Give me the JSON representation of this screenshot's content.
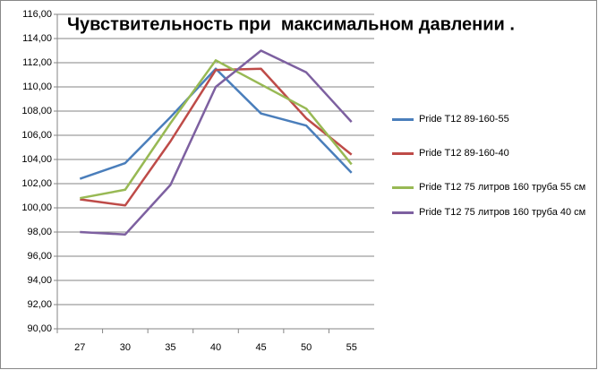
{
  "chart_data": {
    "type": "line",
    "title": "Чувствительность при  максимальном давлении .",
    "categories": [
      "27",
      "30",
      "35",
      "40",
      "45",
      "50",
      "55"
    ],
    "series": [
      {
        "name": "Pride T12 89-160-55",
        "color": "#4a7ebb",
        "values": [
          102.4,
          103.7,
          107.5,
          111.5,
          107.8,
          106.8,
          102.9
        ]
      },
      {
        "name": "Pride T12 89-160-40",
        "color": "#be4b48",
        "values": [
          100.7,
          100.2,
          105.5,
          111.4,
          111.5,
          107.4,
          104.4
        ]
      },
      {
        "name": "Pride T12 75 литров 160 труба 55 см",
        "color": "#98b954",
        "values": [
          100.8,
          101.5,
          107.0,
          112.2,
          110.2,
          108.2,
          103.6
        ]
      },
      {
        "name": "Pride T12 75 литров 160 труба 40 см",
        "color": "#7d60a0",
        "values": [
          98.0,
          97.8,
          101.9,
          110.0,
          113.0,
          111.2,
          107.1
        ]
      }
    ],
    "ylim": [
      90,
      116
    ],
    "yticks": [
      {
        "value": 90,
        "label": "90,00"
      },
      {
        "value": 92,
        "label": "92,00"
      },
      {
        "value": 94,
        "label": "94,00"
      },
      {
        "value": 96,
        "label": "96,00"
      },
      {
        "value": 98,
        "label": "98,00"
      },
      {
        "value": 100,
        "label": "100,00"
      },
      {
        "value": 102,
        "label": "102,00"
      },
      {
        "value": 104,
        "label": "104,00"
      },
      {
        "value": 106,
        "label": "106,00"
      },
      {
        "value": 108,
        "label": "108,00"
      },
      {
        "value": 110,
        "label": "110,00"
      },
      {
        "value": 112,
        "label": "112,00"
      },
      {
        "value": 114,
        "label": "114,00"
      },
      {
        "value": 116,
        "label": "116,00"
      }
    ],
    "grid": true
  }
}
